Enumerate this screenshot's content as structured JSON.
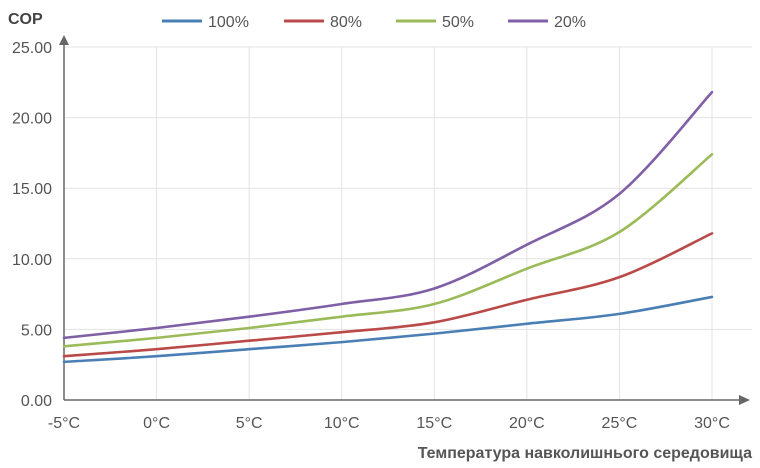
{
  "chart_data": {
    "type": "line",
    "title": "",
    "ylabel": "COP",
    "xlabel": "Температура навколишнього середовища",
    "categories": [
      "-5°C",
      "0°C",
      "5°C",
      "10°C",
      "15°C",
      "20°C",
      "25°C",
      "30°C"
    ],
    "x": [
      -5,
      0,
      5,
      10,
      15,
      20,
      25,
      30
    ],
    "y_ticks": [
      "0.00",
      "5.00",
      "10.00",
      "15.00",
      "20.00",
      "25.00"
    ],
    "ylim": [
      0,
      25
    ],
    "grid": true,
    "legend_position": "top",
    "series": [
      {
        "name": "100%",
        "color": "#4a7fb5",
        "values": [
          2.7,
          3.1,
          3.6,
          4.1,
          4.7,
          5.4,
          6.1,
          7.3
        ]
      },
      {
        "name": "80%",
        "color": "#b94a48",
        "values": [
          3.1,
          3.6,
          4.2,
          4.8,
          5.5,
          7.1,
          8.7,
          11.8
        ]
      },
      {
        "name": "50%",
        "color": "#9bbb59",
        "values": [
          3.8,
          4.4,
          5.1,
          5.9,
          6.8,
          9.3,
          11.9,
          17.4
        ]
      },
      {
        "name": "20%",
        "color": "#7f5fa5",
        "values": [
          4.4,
          5.1,
          5.9,
          6.8,
          7.9,
          11.0,
          14.6,
          21.8
        ]
      }
    ]
  }
}
